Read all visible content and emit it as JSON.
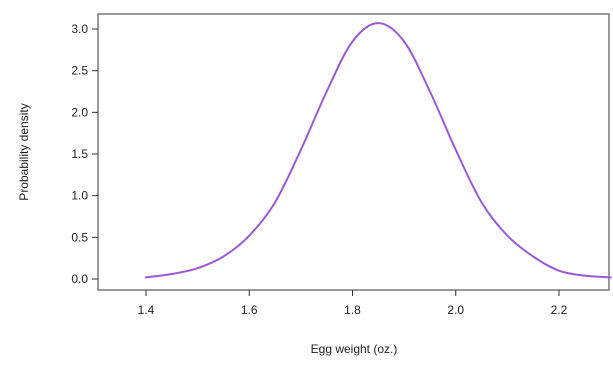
{
  "chart_data": {
    "type": "line",
    "title": "",
    "xlabel": "Egg weight (oz.)",
    "ylabel": "Probability density",
    "xlim": [
      1.4,
      2.3
    ],
    "ylim": [
      0.0,
      3.1
    ],
    "x_ticks": [
      1.4,
      1.6,
      1.8,
      2.0,
      2.2
    ],
    "x_tick_labels": [
      "1.4",
      "1.6",
      "1.8",
      "2.0",
      "2.2"
    ],
    "y_ticks": [
      0.0,
      0.5,
      1.0,
      1.5,
      2.0,
      2.5,
      3.0
    ],
    "y_tick_labels": [
      "0.0",
      "0.5",
      "1.0",
      "1.5",
      "2.0",
      "2.5",
      "3.0"
    ],
    "grid": false,
    "legend": null,
    "series": [
      {
        "color": "#9b59d6",
        "x": [
          1.4,
          1.45,
          1.5,
          1.55,
          1.6,
          1.65,
          1.7,
          1.75,
          1.8,
          1.85,
          1.9,
          1.95,
          2.0,
          2.05,
          2.1,
          2.15,
          2.2,
          2.25,
          2.3
        ],
        "y": [
          0.02,
          0.06,
          0.13,
          0.27,
          0.52,
          0.92,
          1.55,
          2.25,
          2.85,
          3.07,
          2.85,
          2.25,
          1.55,
          0.92,
          0.52,
          0.27,
          0.1,
          0.04,
          0.02
        ]
      }
    ]
  }
}
